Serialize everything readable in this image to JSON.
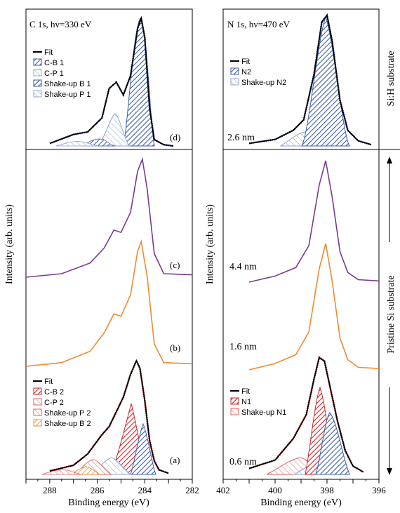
{
  "colors": {
    "fit": "#000000",
    "data_dots": "#1f3a8a",
    "blue": "#3f5fa8",
    "blue_light": "#8ea3d4",
    "red": "#d6232b",
    "red_light": "#e06060",
    "orange": "#f08a30",
    "purple": "#7b3b8f"
  },
  "chart_data": [
    {
      "id": "c1s",
      "type": "line",
      "title": "C 1s, hv=330 eV",
      "xlabel": "Binding energy (eV)",
      "ylabel": "Intensity (arb. units)",
      "xlim": [
        289,
        282
      ],
      "xticks": [
        288,
        286,
        284,
        282
      ],
      "xticklabels": [
        "288",
        "286",
        "284",
        "282"
      ],
      "panel_labels": [
        "(d)",
        "(c)",
        "(b)",
        "(a)"
      ],
      "curves": [
        {
          "id": "d",
          "name": "Fit",
          "color": "fit",
          "x": [
            288.0,
            287.0,
            286.4,
            285.8,
            285.5,
            285.2,
            284.9,
            284.6,
            284.3,
            284.15,
            284.0,
            283.8,
            283.6,
            283.2,
            282.8
          ],
          "y": [
            0.02,
            0.09,
            0.11,
            0.22,
            0.45,
            0.5,
            0.4,
            0.55,
            0.92,
            1.0,
            0.85,
            0.3,
            0.05,
            0.01,
            0.0
          ]
        },
        {
          "id": "c",
          "color": "purple",
          "x": [
            289.0,
            287.5,
            286.3,
            285.7,
            285.3,
            285.0,
            284.6,
            284.3,
            284.1,
            283.9,
            283.6,
            283.2,
            282.0
          ],
          "y": [
            0.0,
            0.03,
            0.12,
            0.25,
            0.4,
            0.38,
            0.55,
            0.9,
            1.0,
            0.75,
            0.2,
            0.03,
            0.02
          ]
        },
        {
          "id": "b",
          "color": "orange",
          "x": [
            289.0,
            287.5,
            286.3,
            285.7,
            285.3,
            285.0,
            284.6,
            284.3,
            284.15,
            283.9,
            283.6,
            283.2,
            282.0
          ],
          "y": [
            0.0,
            0.03,
            0.12,
            0.27,
            0.42,
            0.4,
            0.57,
            0.92,
            1.0,
            0.72,
            0.18,
            0.03,
            0.02
          ]
        },
        {
          "id": "a",
          "name": "Fit",
          "color": "fit",
          "x": [
            288.0,
            287.0,
            286.4,
            285.8,
            285.5,
            285.2,
            284.9,
            284.6,
            284.35,
            284.2,
            284.0,
            283.8,
            283.6,
            283.4,
            283.0
          ],
          "y": [
            0.03,
            0.08,
            0.18,
            0.35,
            0.42,
            0.55,
            0.68,
            0.88,
            1.0,
            0.93,
            0.65,
            0.3,
            0.12,
            0.04,
            0.01
          ]
        }
      ],
      "legends": [
        {
          "panel": "d",
          "entries": [
            "Fit",
            "C-B 1",
            "C-P 1",
            "Shake-up B 1",
            "Shake-up P 1"
          ]
        },
        {
          "panel": "a",
          "entries": [
            "Fit",
            "C-B 2",
            "C-P 2",
            "Shake-up P 2",
            "Shake-up B 2"
          ]
        }
      ]
    },
    {
      "id": "n1s",
      "type": "line",
      "title": "N 1s, hv=470 eV",
      "xlabel": "Binding energy (eV)",
      "ylabel": "Intensity (arb. units)",
      "xlim": [
        402,
        396
      ],
      "xticks": [
        402,
        400,
        398,
        396
      ],
      "xticklabels": [
        "402",
        "400",
        "398",
        "396"
      ],
      "thickness_labels": [
        "2.6 nm",
        "4.4 nm",
        "1.6 nm",
        "0.6 nm"
      ],
      "side_labels": [
        "Si:H substrate",
        "Pristine Si substrate"
      ],
      "curves": [
        {
          "id": "top",
          "name": "Fit",
          "color": "fit",
          "x": [
            401.0,
            400.0,
            399.3,
            398.9,
            398.5,
            398.2,
            398.0,
            397.8,
            397.5,
            397.2,
            396.8,
            396.3
          ],
          "y": [
            0.02,
            0.05,
            0.12,
            0.2,
            0.55,
            0.95,
            1.0,
            0.8,
            0.35,
            0.12,
            0.04,
            0.01
          ]
        },
        {
          "id": "purple",
          "color": "purple",
          "x": [
            401.0,
            400.0,
            399.2,
            398.7,
            398.3,
            398.05,
            397.8,
            397.5,
            397.2,
            396.8,
            396.0
          ],
          "y": [
            0.0,
            0.05,
            0.12,
            0.3,
            0.8,
            1.0,
            0.7,
            0.25,
            0.08,
            0.02,
            0.01
          ]
        },
        {
          "id": "orange",
          "color": "orange",
          "x": [
            401.0,
            400.0,
            399.2,
            398.7,
            398.3,
            398.05,
            397.8,
            397.5,
            397.2,
            396.8,
            396.0
          ],
          "y": [
            0.0,
            0.05,
            0.12,
            0.3,
            0.8,
            1.0,
            0.7,
            0.25,
            0.08,
            0.02,
            0.01
          ]
        },
        {
          "id": "bottom",
          "name": "Fit",
          "color": "fit",
          "x": [
            401.0,
            400.0,
            399.3,
            398.8,
            398.5,
            398.3,
            398.1,
            397.9,
            397.6,
            397.3,
            397.0,
            396.6
          ],
          "y": [
            0.05,
            0.12,
            0.3,
            0.5,
            0.8,
            0.98,
            0.95,
            0.75,
            0.45,
            0.2,
            0.07,
            0.02
          ]
        }
      ],
      "legends": [
        {
          "panel": "top",
          "entries": [
            "Fit",
            "N2",
            "Shake-up N2"
          ]
        },
        {
          "panel": "bottom",
          "entries": [
            "Fit",
            "N1",
            "Shake-up N1"
          ]
        }
      ]
    }
  ]
}
